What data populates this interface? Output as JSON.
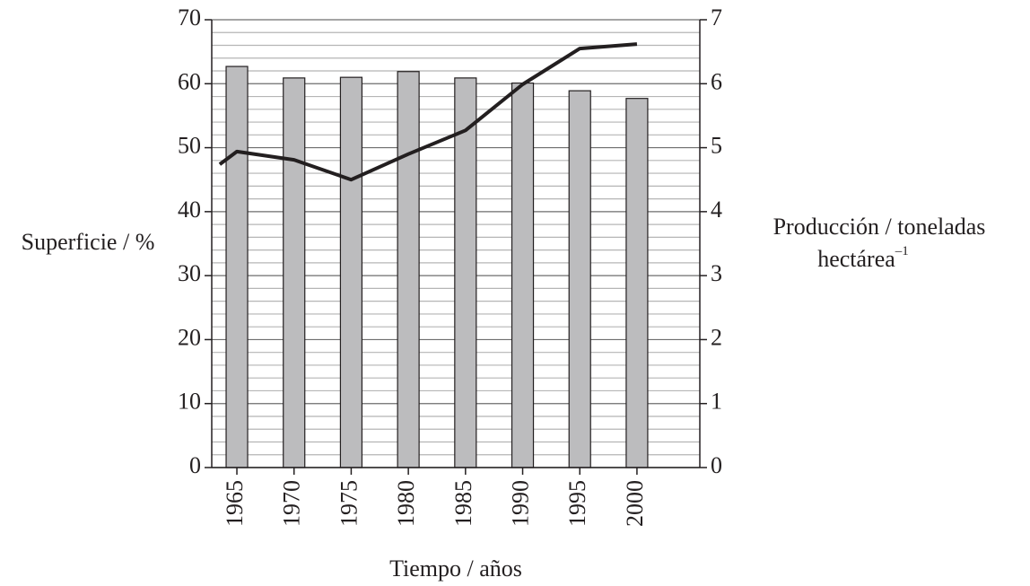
{
  "chart_data": {
    "type": "bar-line",
    "x": [
      1965,
      1970,
      1975,
      1980,
      1985,
      1990,
      1995,
      2000
    ],
    "xlim": [
      1962.8,
      2005.5
    ],
    "x_label": "Tiempo / años",
    "y_label": "Superficie / %",
    "y2_label": {
      "line1": "Producción / toneladas",
      "line2": "hectárea",
      "sup": "–1"
    },
    "ylim": [
      0,
      70
    ],
    "yticks": [
      0,
      10,
      20,
      30,
      40,
      50,
      60,
      70
    ],
    "y_minor_ticks": [
      2,
      4,
      6,
      8,
      12,
      14,
      16,
      18,
      22,
      24,
      26,
      28,
      32,
      34,
      36,
      38,
      42,
      44,
      46,
      48,
      52,
      54,
      56,
      58,
      62,
      64,
      66,
      68
    ],
    "y2lim": [
      0,
      7
    ],
    "y2ticks": [
      0,
      1,
      2,
      3,
      4,
      5,
      6,
      7
    ],
    "grid": true,
    "series": [
      {
        "type": "bar",
        "color": "#bcbcbe",
        "values": [
          62.7,
          60.9,
          61.0,
          61.9,
          60.9,
          60.1,
          58.9,
          57.7
        ]
      },
      {
        "type": "line",
        "color": "#231f20",
        "axis": "y2",
        "x": [
          1963.5,
          1965,
          1970,
          1975,
          1980,
          1985,
          1990,
          1995,
          2000
        ],
        "values": [
          4.74,
          4.94,
          4.81,
          4.5,
          4.9,
          5.27,
          5.99,
          6.55,
          6.62
        ]
      }
    ]
  }
}
